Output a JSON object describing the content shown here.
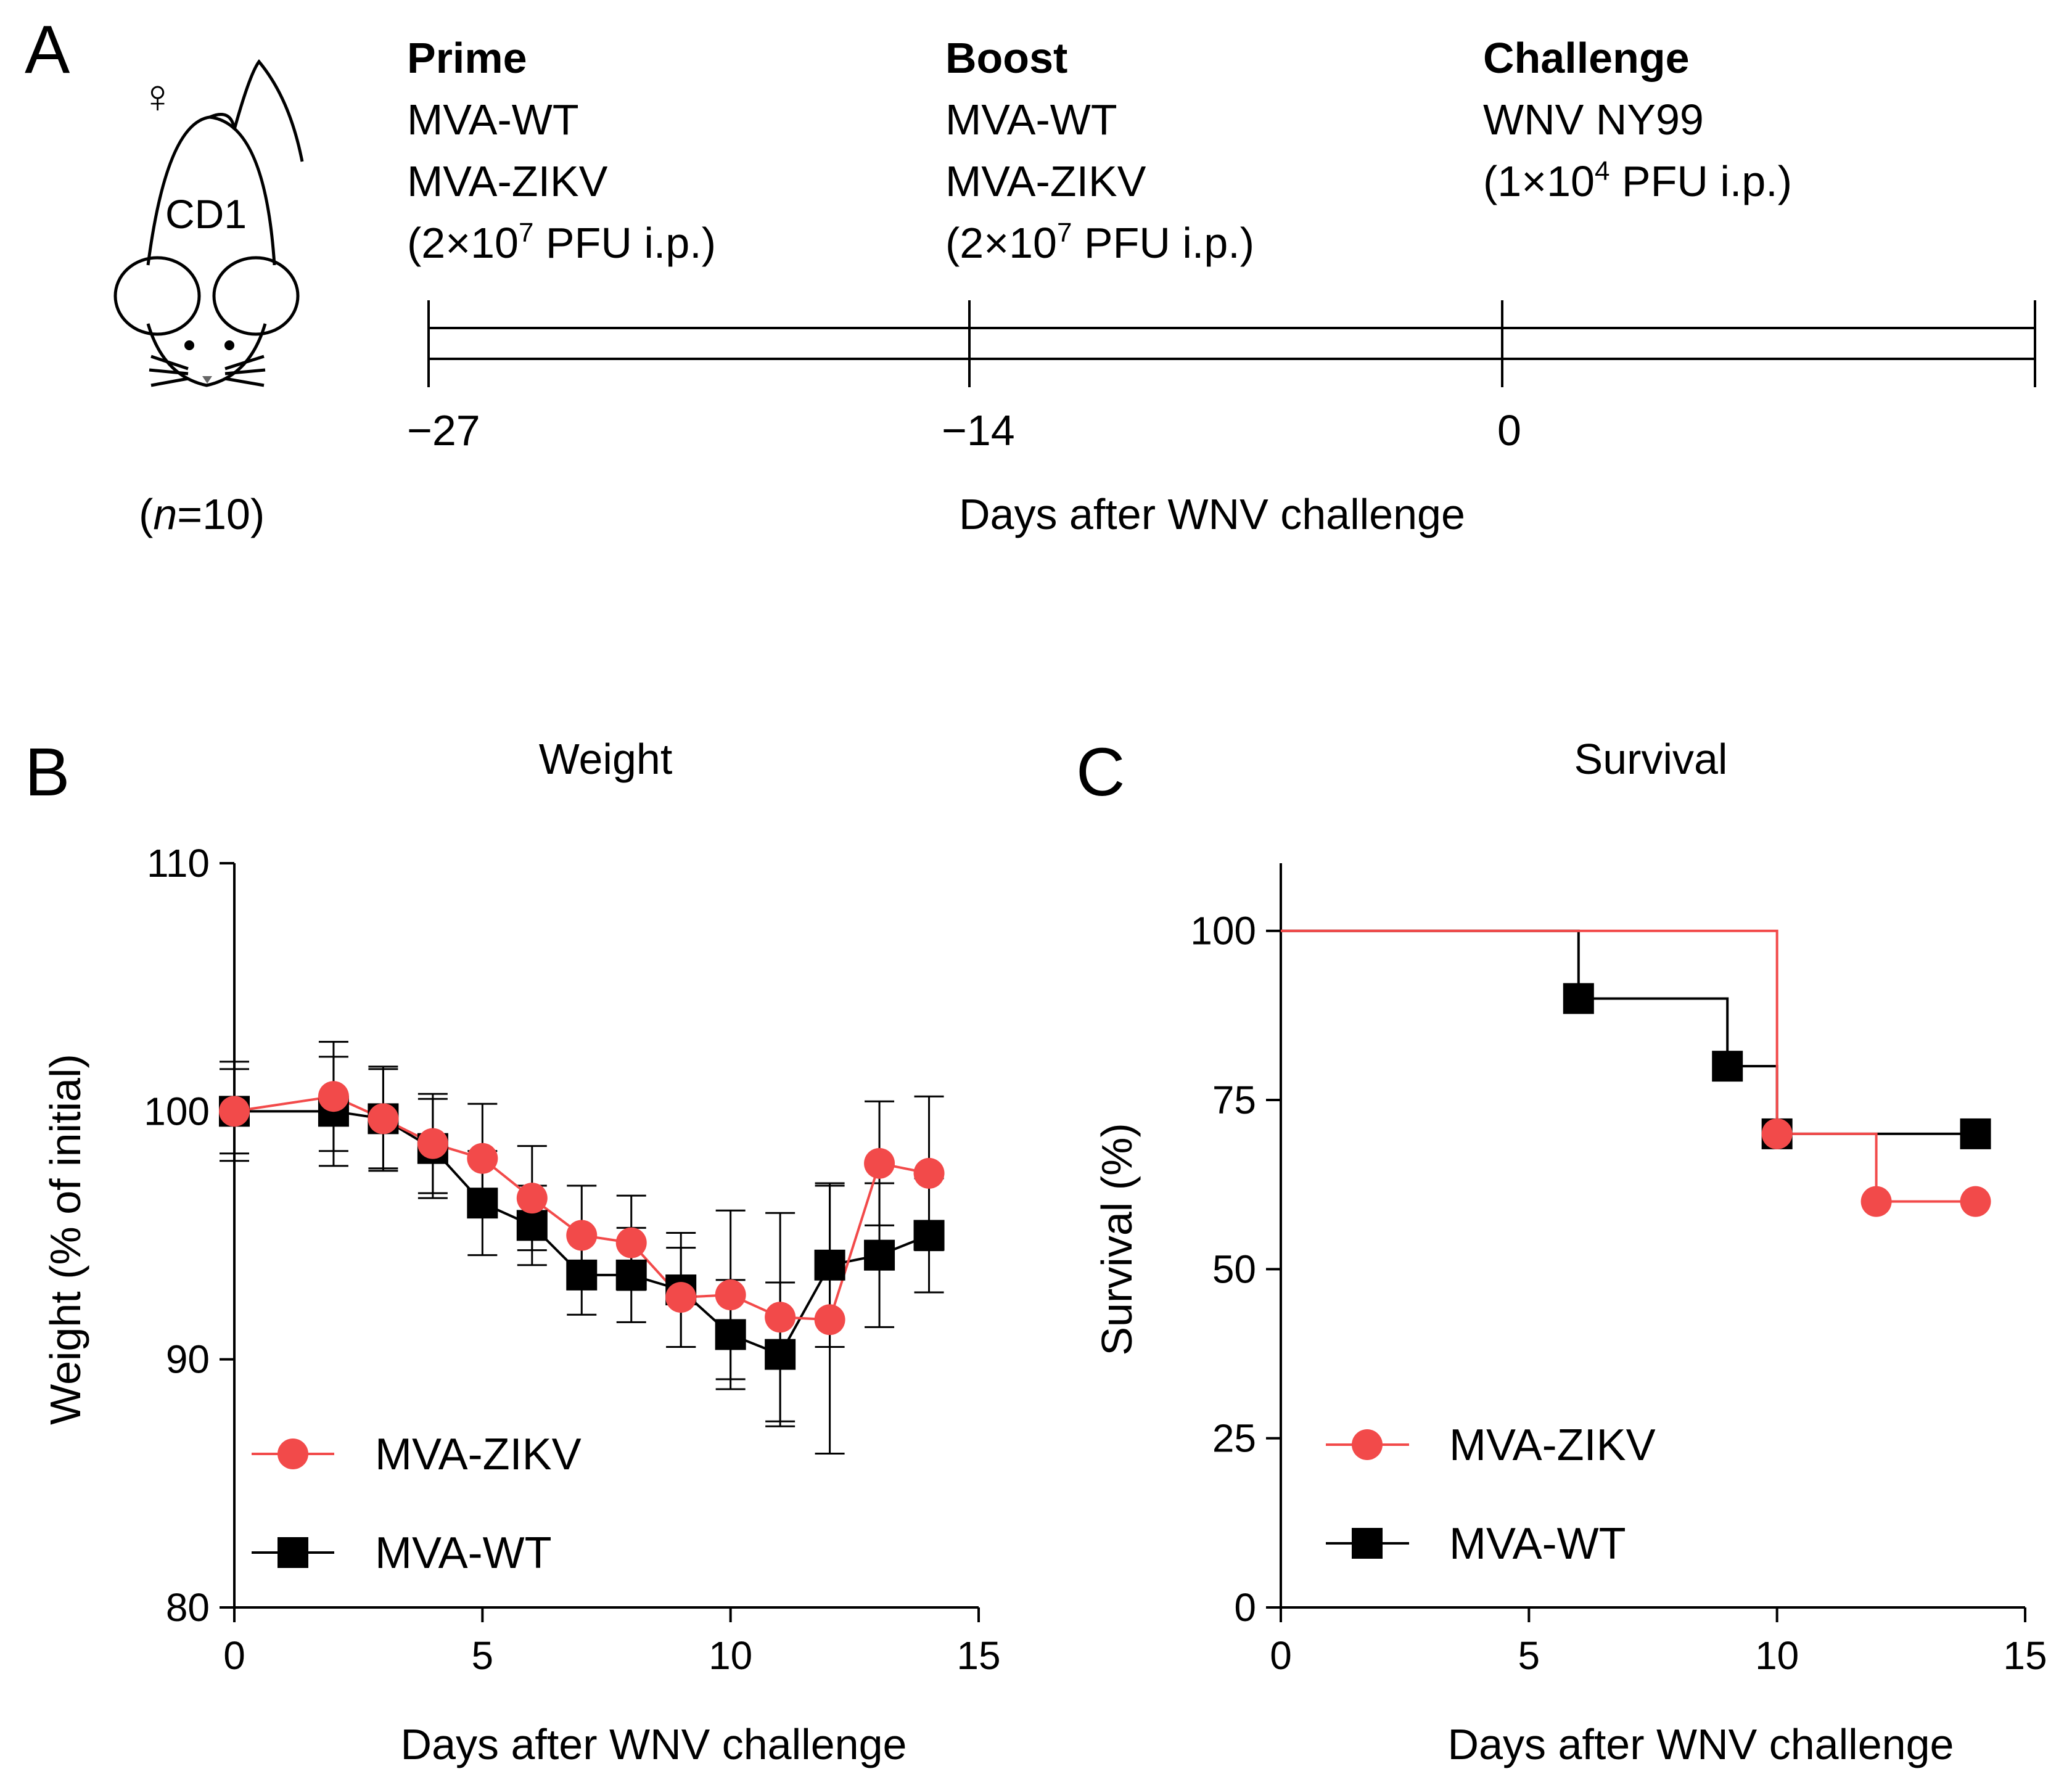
{
  "panel_a": {
    "letter": "A",
    "mouse": {
      "strain": "CD1",
      "sex_symbol": "♀",
      "n_open": "(",
      "n_italic": "n",
      "n_rest": "=10)"
    },
    "steps": [
      {
        "title": "Prime",
        "lines": [
          "MVA-WT",
          "MVA-ZIKV"
        ],
        "dose_prefix": "(2×10",
        "dose_exp": "7",
        "dose_suffix": " PFU i.p.)"
      },
      {
        "title": "Boost",
        "lines": [
          "MVA-WT",
          "MVA-ZIKV"
        ],
        "dose_prefix": "(2×10",
        "dose_exp": "7",
        "dose_suffix": " PFU i.p.)"
      },
      {
        "title": "Challenge",
        "lines": [
          "WNV NY99"
        ],
        "dose_prefix": "(1×10",
        "dose_exp": "4",
        "dose_suffix": " PFU i.p.)"
      }
    ],
    "timeline_ticks": [
      "−27",
      "−14",
      "0"
    ],
    "timeline_label": "Days after WNV challenge"
  },
  "colors": {
    "zikv": "#f24a4a",
    "wt": "#000000"
  },
  "chart_data": [
    {
      "panel": "B",
      "type": "line",
      "title": "Weight",
      "xlabel": "Days after WNV challenge",
      "ylabel": "Weight (% of initial)",
      "xlim": [
        0,
        15
      ],
      "ylim": [
        80,
        110
      ],
      "xticks": [
        "0",
        "5",
        "10",
        "15"
      ],
      "yticks": [
        "80",
        "90",
        "100",
        "110"
      ],
      "legend_position": "bottom-left",
      "series": [
        {
          "name": "MVA-ZIKV",
          "marker": "circle",
          "x": [
            0,
            2,
            3,
            4,
            5,
            6,
            7,
            8,
            9,
            10,
            11,
            12,
            13,
            14
          ],
          "y": [
            100,
            100.6,
            99.7,
            98.7,
            98.1,
            96.5,
            95.0,
            94.7,
            92.5,
            92.6,
            91.7,
            91.6,
            97.9,
            97.5
          ],
          "err": [
            2.0,
            2.2,
            2.0,
            2.0,
            2.2,
            2.1,
            2.0,
            1.9,
            2.0,
            3.4,
            4.2,
            5.4,
            2.5,
            3.1
          ]
        },
        {
          "name": "MVA-WT",
          "marker": "square",
          "x": [
            0,
            2,
            3,
            4,
            5,
            6,
            7,
            8,
            9,
            10,
            11,
            12,
            13,
            14
          ],
          "y": [
            100,
            100.0,
            99.7,
            98.5,
            96.3,
            95.4,
            93.4,
            93.4,
            92.8,
            91.0,
            90.2,
            93.8,
            94.2,
            95.0
          ],
          "err": [
            1.7,
            2.2,
            2.1,
            2.0,
            2.1,
            1.6,
            1.6,
            1.9,
            2.3,
            2.2,
            2.9,
            3.3,
            2.9,
            2.3
          ]
        }
      ]
    },
    {
      "panel": "C",
      "type": "line",
      "subtype": "survival-step",
      "title": "Survival",
      "xlabel": "Days after WNV challenge",
      "ylabel": "Survival (%)",
      "xlim": [
        0,
        15
      ],
      "ylim": [
        0,
        110
      ],
      "xticks": [
        "0",
        "5",
        "10",
        "15"
      ],
      "yticks": [
        "0",
        "25",
        "50",
        "75",
        "100"
      ],
      "legend_position": "bottom-left",
      "series": [
        {
          "name": "MVA-ZIKV",
          "marker": "circle",
          "x": [
            0,
            10,
            12,
            14
          ],
          "y": [
            100,
            70,
            60,
            60
          ]
        },
        {
          "name": "MVA-WT",
          "marker": "square",
          "x": [
            0,
            6,
            9,
            10,
            14
          ],
          "y": [
            100,
            90,
            80,
            70,
            70
          ]
        }
      ]
    }
  ]
}
